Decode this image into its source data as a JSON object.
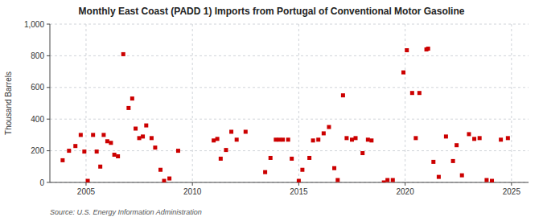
{
  "chart_data": {
    "type": "scatter",
    "title": "Monthly East Coast (PADD 1) Imports from Portugal of Conventional Motor Gasoline",
    "y_label": "Thousand Barrels",
    "source": "Source: U.S. Energy Information Administration",
    "color": "#cc0000",
    "marker": "square",
    "grid": true,
    "xlim": [
      2003.3,
      2025.8
    ],
    "ylim": [
      0,
      1000
    ],
    "xticks": [
      2005,
      2010,
      2015,
      2020,
      2025
    ],
    "yticks": [
      0,
      200,
      400,
      600,
      800,
      {
        "value": 1000,
        "label": "1,000"
      }
    ],
    "x": [
      2003.9,
      2004.2,
      2004.5,
      2004.75,
      2004.92,
      2005.08,
      2005.33,
      2005.5,
      2005.67,
      2005.83,
      2006.0,
      2006.17,
      2006.33,
      2006.5,
      2006.75,
      2007.0,
      2007.17,
      2007.33,
      2007.5,
      2007.67,
      2007.83,
      2008.08,
      2008.25,
      2008.5,
      2008.67,
      2008.92,
      2009.33,
      2011.0,
      2011.17,
      2011.33,
      2011.58,
      2011.83,
      2012.08,
      2012.5,
      2013.42,
      2013.67,
      2013.92,
      2014.08,
      2014.25,
      2014.5,
      2014.67,
      2015.0,
      2015.17,
      2015.5,
      2015.67,
      2015.92,
      2016.17,
      2016.42,
      2016.67,
      2016.83,
      2017.08,
      2017.25,
      2017.5,
      2017.67,
      2018.0,
      2018.25,
      2018.42,
      2019.0,
      2019.17,
      2019.42,
      2019.92,
      2020.08,
      2020.33,
      2020.5,
      2020.67,
      2021.0,
      2021.08,
      2021.33,
      2021.58,
      2021.92,
      2022.25,
      2022.42,
      2022.67,
      2023.0,
      2023.25,
      2023.5,
      2023.83,
      2024.08,
      2024.5,
      2024.83
    ],
    "values": [
      140,
      200,
      230,
      300,
      195,
      10,
      300,
      195,
      100,
      300,
      260,
      250,
      175,
      165,
      810,
      470,
      530,
      340,
      280,
      290,
      360,
      280,
      220,
      80,
      10,
      25,
      200,
      265,
      275,
      150,
      205,
      320,
      270,
      320,
      65,
      155,
      270,
      270,
      270,
      270,
      150,
      10,
      80,
      155,
      265,
      270,
      310,
      350,
      90,
      15,
      550,
      280,
      270,
      280,
      185,
      270,
      265,
      0,
      15,
      15,
      695,
      835,
      565,
      280,
      565,
      840,
      845,
      130,
      35,
      290,
      135,
      235,
      45,
      305,
      275,
      280,
      15,
      10,
      270,
      280
    ]
  }
}
